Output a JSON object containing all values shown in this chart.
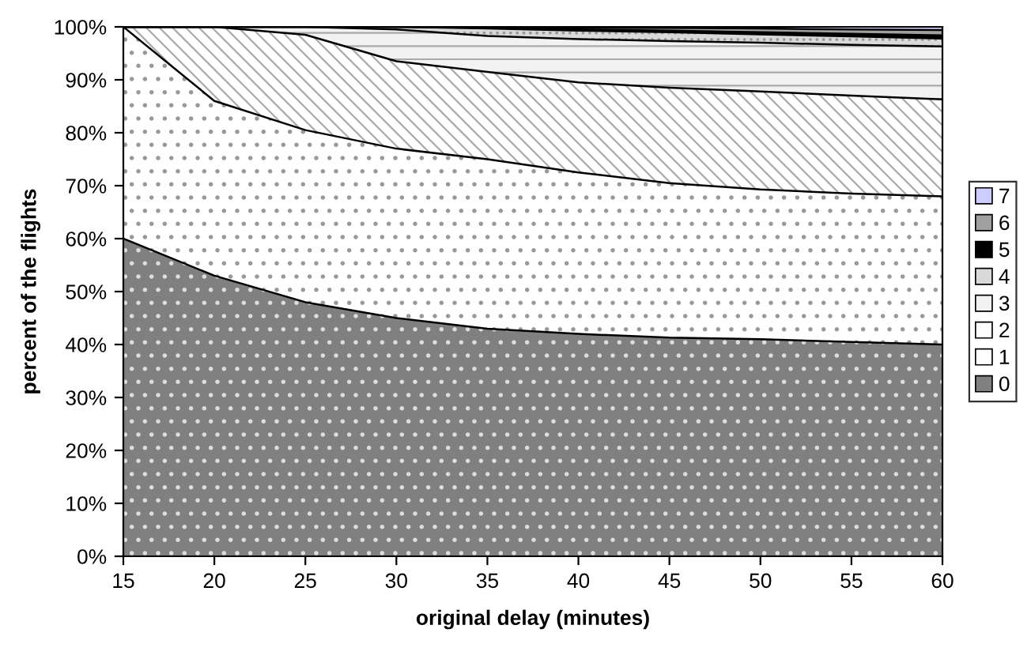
{
  "chart_data": {
    "type": "area",
    "stacked": true,
    "xlabel": "original delay (minutes)",
    "ylabel": "percent of the flights",
    "x": [
      15,
      20,
      25,
      30,
      35,
      40,
      45,
      50,
      55,
      60
    ],
    "series": [
      {
        "name": "0",
        "color": "#808080",
        "values": [
          60,
          53,
          48,
          45,
          43,
          42,
          41.3,
          41,
          40.5,
          40
        ]
      },
      {
        "name": "1",
        "color": "#ffffff",
        "values": [
          40,
          33,
          32.5,
          32,
          32,
          30.5,
          29.2,
          28.3,
          28,
          28
        ]
      },
      {
        "name": "2",
        "color": "#ffffff",
        "values": [
          0,
          14,
          18,
          16.5,
          16.5,
          17,
          18,
          18.5,
          18.5,
          18.3
        ]
      },
      {
        "name": "3",
        "color": "#f2f2f2",
        "values": [
          0,
          0,
          1.5,
          6,
          6.8,
          8.2,
          8.8,
          9.2,
          9.6,
          10
        ]
      },
      {
        "name": "4",
        "color": "#d9d9d9",
        "values": [
          0,
          0,
          0,
          0.5,
          1.4,
          1.6,
          1.7,
          1.6,
          1.6,
          1.5
        ]
      },
      {
        "name": "5",
        "color": "#000000",
        "values": [
          0,
          0,
          0,
          0,
          0.1,
          0.2,
          0.3,
          0.4,
          0.5,
          0.6
        ]
      },
      {
        "name": "6",
        "color": "#a0a0a0",
        "values": [
          0,
          0,
          0,
          0,
          0.2,
          0.3,
          0.5,
          0.7,
          0.8,
          1
        ]
      },
      {
        "name": "7",
        "color": "#ccccff",
        "values": [
          0,
          0,
          0,
          0,
          0,
          0.1,
          0.2,
          0.3,
          0.3,
          0.4
        ]
      }
    ],
    "xlim": [
      15,
      60
    ],
    "xticks": [
      15,
      20,
      25,
      30,
      35,
      40,
      45,
      50,
      55,
      60
    ],
    "ylim": [
      0,
      100
    ],
    "yticks": [
      {
        "value": 0,
        "label": "0%"
      },
      {
        "value": 10,
        "label": "10%"
      },
      {
        "value": 20,
        "label": "20%"
      },
      {
        "value": 30,
        "label": "30%"
      },
      {
        "value": 40,
        "label": "40%"
      },
      {
        "value": 50,
        "label": "50%"
      },
      {
        "value": 60,
        "label": "60%"
      },
      {
        "value": 70,
        "label": "70%"
      },
      {
        "value": 80,
        "label": "80%"
      },
      {
        "value": 90,
        "label": "90%"
      },
      {
        "value": 100,
        "label": "100%"
      }
    ],
    "grid": false,
    "legend": "right"
  }
}
